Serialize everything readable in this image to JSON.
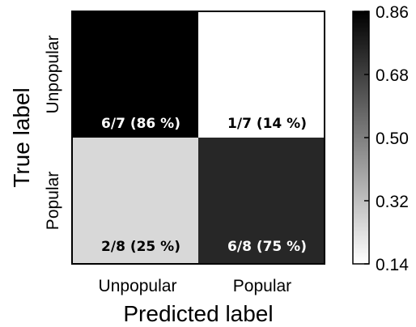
{
  "chart_data": {
    "type": "heatmap",
    "title": "",
    "xlabel": "Predicted label",
    "ylabel": "True label",
    "x_categories": [
      "Unpopular",
      "Popular"
    ],
    "y_categories": [
      "Unpopular",
      "Popular"
    ],
    "values": [
      [
        0.86,
        0.14
      ],
      [
        0.25,
        0.75
      ]
    ],
    "cell_labels": [
      [
        "6/7 (86 %)",
        "1/7 (14 %)"
      ],
      [
        "2/8 (25 %)",
        "6/8 (75 %)"
      ]
    ],
    "colorbar": {
      "min": 0.14,
      "max": 0.86,
      "ticks": [
        "0.86",
        "0.68",
        "0.50",
        "0.32",
        "0.14"
      ],
      "colormap": "greys",
      "low_color": "#ffffff",
      "high_color": "#000000"
    },
    "grid": false
  }
}
